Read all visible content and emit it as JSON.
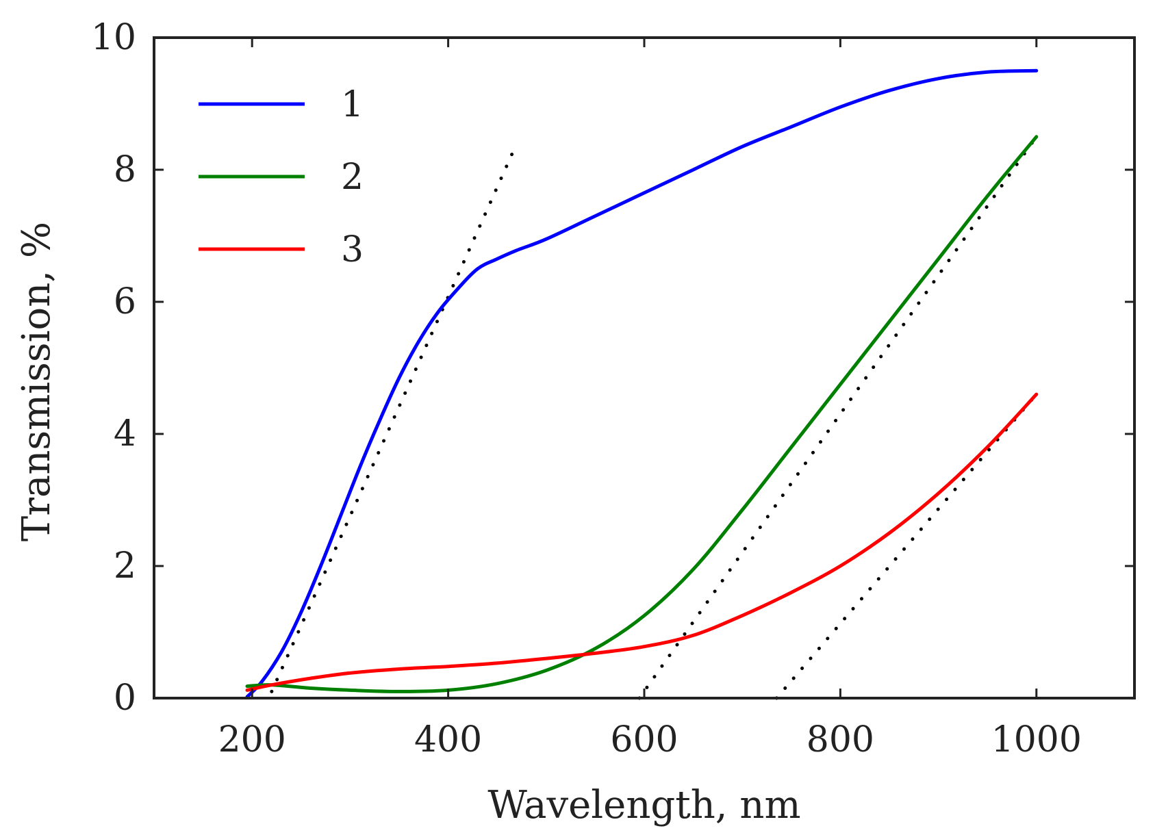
{
  "chart_data": {
    "type": "line",
    "title": "",
    "xlabel": "Wavelength, nm",
    "ylabel": "Transmission, %",
    "xlim": [
      100,
      1100
    ],
    "ylim": [
      0,
      10
    ],
    "xticks": [
      200,
      400,
      600,
      800,
      1000
    ],
    "yticks": [
      0,
      2,
      4,
      6,
      8,
      10
    ],
    "xtick_labels": [
      "200",
      "400",
      "600",
      "800",
      "1000"
    ],
    "ytick_labels": [
      "0",
      "2",
      "4",
      "6",
      "8",
      "10"
    ],
    "grid": false,
    "legend_position": "top-left",
    "series": [
      {
        "name": "1",
        "color": "#0000ff",
        "x": [
          195,
          210,
          230,
          250,
          270,
          290,
          310,
          330,
          350,
          370,
          390,
          410,
          430,
          450,
          470,
          500,
          550,
          600,
          650,
          700,
          750,
          800,
          850,
          900,
          950,
          1000
        ],
        "y": [
          0.02,
          0.25,
          0.7,
          1.3,
          2.0,
          2.75,
          3.5,
          4.2,
          4.85,
          5.4,
          5.85,
          6.2,
          6.5,
          6.65,
          6.78,
          6.95,
          7.3,
          7.65,
          8.0,
          8.35,
          8.65,
          8.95,
          9.2,
          9.38,
          9.48,
          9.5
        ]
      },
      {
        "name": "2",
        "color": "#008000",
        "x": [
          195,
          220,
          260,
          300,
          350,
          400,
          450,
          500,
          550,
          600,
          650,
          700,
          750,
          800,
          850,
          900,
          950,
          1000
        ],
        "y": [
          0.18,
          0.2,
          0.15,
          0.12,
          0.1,
          0.12,
          0.22,
          0.42,
          0.75,
          1.25,
          1.95,
          2.85,
          3.8,
          4.75,
          5.7,
          6.65,
          7.6,
          8.5
        ]
      },
      {
        "name": "3",
        "color": "#ff0000",
        "x": [
          195,
          220,
          260,
          300,
          350,
          400,
          450,
          500,
          550,
          600,
          650,
          700,
          750,
          800,
          850,
          900,
          950,
          1000
        ],
        "y": [
          0.12,
          0.2,
          0.3,
          0.38,
          0.44,
          0.48,
          0.53,
          0.6,
          0.68,
          0.78,
          0.95,
          1.25,
          1.6,
          2.0,
          2.5,
          3.1,
          3.8,
          4.6
        ]
      }
    ],
    "annotations": [
      {
        "type": "dotted-fit",
        "color": "#000000",
        "x": [
          220,
          470
        ],
        "y": [
          0.1,
          8.4
        ]
      },
      {
        "type": "dotted-fit",
        "color": "#000000",
        "x": [
          595,
          1000
        ],
        "y": [
          0.0,
          8.5
        ]
      },
      {
        "type": "dotted-fit",
        "color": "#000000",
        "x": [
          735,
          1000
        ],
        "y": [
          0.0,
          4.6
        ]
      }
    ]
  }
}
